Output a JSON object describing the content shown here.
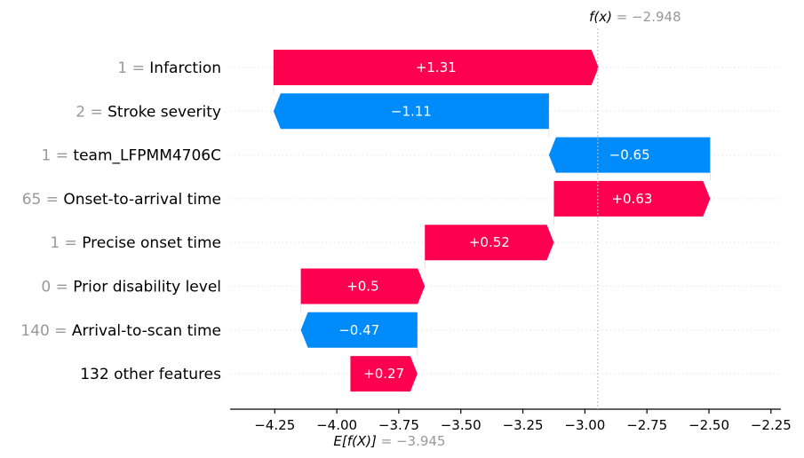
{
  "chart_data": {
    "type": "waterfall",
    "fx_label": "f(x)",
    "fx_value_text": "= −2.948",
    "fx_value": -2.948,
    "efx_label": "E[f(X)]",
    "efx_value_text": "= −3.945",
    "efx_value": -3.945,
    "xlim": [
      -4.43,
      -2.21
    ],
    "ticks": [
      {
        "v": -4.25,
        "label": "−4.25"
      },
      {
        "v": -4.0,
        "label": "−4.00"
      },
      {
        "v": -3.75,
        "label": "−3.75"
      },
      {
        "v": -3.5,
        "label": "−3.50"
      },
      {
        "v": -3.25,
        "label": "−3.25"
      },
      {
        "v": -3.0,
        "label": "−3.00"
      },
      {
        "v": -2.75,
        "label": "−2.75"
      },
      {
        "v": -2.5,
        "label": "−2.50"
      },
      {
        "v": -2.25,
        "label": "−2.25"
      }
    ],
    "features": [
      {
        "value": "1",
        "name": "Infarction",
        "shap": 1.31,
        "label": "+1.31"
      },
      {
        "value": "2",
        "name": "Stroke severity",
        "shap": -1.11,
        "label": "−1.11"
      },
      {
        "value": "1",
        "name": "team_LFPMM4706C",
        "shap": -0.65,
        "label": "−0.65"
      },
      {
        "value": "65",
        "name": "Onset-to-arrival time",
        "shap": 0.63,
        "label": "+0.63"
      },
      {
        "value": "1",
        "name": "Precise onset time",
        "shap": 0.52,
        "label": "+0.52"
      },
      {
        "value": "0",
        "name": "Prior disability level",
        "shap": 0.5,
        "label": "+0.5"
      },
      {
        "value": "140",
        "name": "Arrival-to-scan time",
        "shap": -0.47,
        "label": "−0.47"
      },
      {
        "value": "",
        "name": "132 other features",
        "shap": 0.27,
        "label": "+0.27"
      }
    ],
    "colors": {
      "positive": "#ff0051",
      "negative": "#008bfb",
      "gray": "#999999"
    }
  }
}
